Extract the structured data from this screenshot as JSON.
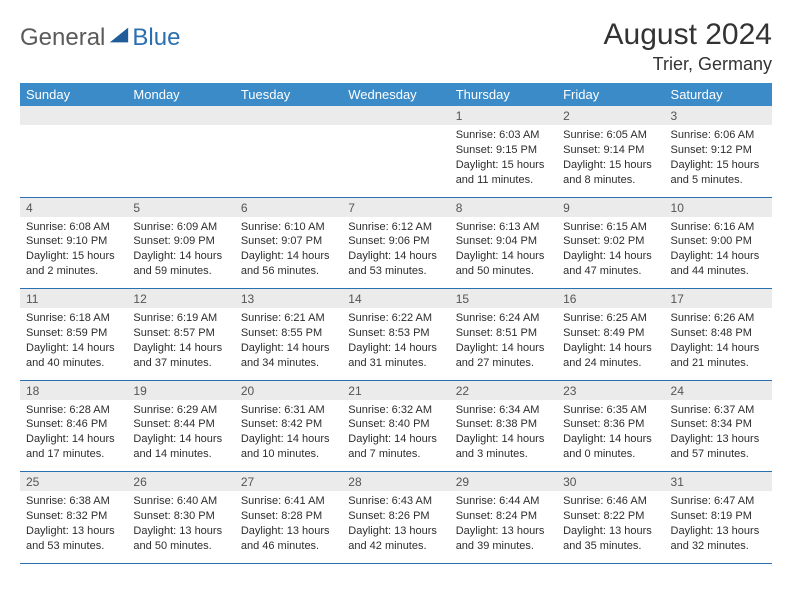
{
  "logo": {
    "part1": "General",
    "part2": "Blue"
  },
  "title": {
    "month": "August 2024",
    "location": "Trier, Germany"
  },
  "colors": {
    "header_bg": "#3b8bc9",
    "header_fg": "#ffffff",
    "daynum_bg": "#ebebeb",
    "daynum_fg": "#555555",
    "rule": "#2a6fb0",
    "text": "#2d2d2d",
    "logo_gray": "#5a5a5a",
    "logo_blue": "#2a6fb0",
    "logo_triangle": "#1f5c99"
  },
  "fontsizes": {
    "title_month": 30,
    "title_loc": 18,
    "th": 13,
    "daynum": 12,
    "cell": 11
  },
  "dayHeaders": [
    "Sunday",
    "Monday",
    "Tuesday",
    "Wednesday",
    "Thursday",
    "Friday",
    "Saturday"
  ],
  "weeks": [
    [
      null,
      null,
      null,
      null,
      {
        "n": "1",
        "sr": "6:03 AM",
        "ss": "9:15 PM",
        "dl": "15 hours and 11 minutes."
      },
      {
        "n": "2",
        "sr": "6:05 AM",
        "ss": "9:14 PM",
        "dl": "15 hours and 8 minutes."
      },
      {
        "n": "3",
        "sr": "6:06 AM",
        "ss": "9:12 PM",
        "dl": "15 hours and 5 minutes."
      }
    ],
    [
      {
        "n": "4",
        "sr": "6:08 AM",
        "ss": "9:10 PM",
        "dl": "15 hours and 2 minutes."
      },
      {
        "n": "5",
        "sr": "6:09 AM",
        "ss": "9:09 PM",
        "dl": "14 hours and 59 minutes."
      },
      {
        "n": "6",
        "sr": "6:10 AM",
        "ss": "9:07 PM",
        "dl": "14 hours and 56 minutes."
      },
      {
        "n": "7",
        "sr": "6:12 AM",
        "ss": "9:06 PM",
        "dl": "14 hours and 53 minutes."
      },
      {
        "n": "8",
        "sr": "6:13 AM",
        "ss": "9:04 PM",
        "dl": "14 hours and 50 minutes."
      },
      {
        "n": "9",
        "sr": "6:15 AM",
        "ss": "9:02 PM",
        "dl": "14 hours and 47 minutes."
      },
      {
        "n": "10",
        "sr": "6:16 AM",
        "ss": "9:00 PM",
        "dl": "14 hours and 44 minutes."
      }
    ],
    [
      {
        "n": "11",
        "sr": "6:18 AM",
        "ss": "8:59 PM",
        "dl": "14 hours and 40 minutes."
      },
      {
        "n": "12",
        "sr": "6:19 AM",
        "ss": "8:57 PM",
        "dl": "14 hours and 37 minutes."
      },
      {
        "n": "13",
        "sr": "6:21 AM",
        "ss": "8:55 PM",
        "dl": "14 hours and 34 minutes."
      },
      {
        "n": "14",
        "sr": "6:22 AM",
        "ss": "8:53 PM",
        "dl": "14 hours and 31 minutes."
      },
      {
        "n": "15",
        "sr": "6:24 AM",
        "ss": "8:51 PM",
        "dl": "14 hours and 27 minutes."
      },
      {
        "n": "16",
        "sr": "6:25 AM",
        "ss": "8:49 PM",
        "dl": "14 hours and 24 minutes."
      },
      {
        "n": "17",
        "sr": "6:26 AM",
        "ss": "8:48 PM",
        "dl": "14 hours and 21 minutes."
      }
    ],
    [
      {
        "n": "18",
        "sr": "6:28 AM",
        "ss": "8:46 PM",
        "dl": "14 hours and 17 minutes."
      },
      {
        "n": "19",
        "sr": "6:29 AM",
        "ss": "8:44 PM",
        "dl": "14 hours and 14 minutes."
      },
      {
        "n": "20",
        "sr": "6:31 AM",
        "ss": "8:42 PM",
        "dl": "14 hours and 10 minutes."
      },
      {
        "n": "21",
        "sr": "6:32 AM",
        "ss": "8:40 PM",
        "dl": "14 hours and 7 minutes."
      },
      {
        "n": "22",
        "sr": "6:34 AM",
        "ss": "8:38 PM",
        "dl": "14 hours and 3 minutes."
      },
      {
        "n": "23",
        "sr": "6:35 AM",
        "ss": "8:36 PM",
        "dl": "14 hours and 0 minutes."
      },
      {
        "n": "24",
        "sr": "6:37 AM",
        "ss": "8:34 PM",
        "dl": "13 hours and 57 minutes."
      }
    ],
    [
      {
        "n": "25",
        "sr": "6:38 AM",
        "ss": "8:32 PM",
        "dl": "13 hours and 53 minutes."
      },
      {
        "n": "26",
        "sr": "6:40 AM",
        "ss": "8:30 PM",
        "dl": "13 hours and 50 minutes."
      },
      {
        "n": "27",
        "sr": "6:41 AM",
        "ss": "8:28 PM",
        "dl": "13 hours and 46 minutes."
      },
      {
        "n": "28",
        "sr": "6:43 AM",
        "ss": "8:26 PM",
        "dl": "13 hours and 42 minutes."
      },
      {
        "n": "29",
        "sr": "6:44 AM",
        "ss": "8:24 PM",
        "dl": "13 hours and 39 minutes."
      },
      {
        "n": "30",
        "sr": "6:46 AM",
        "ss": "8:22 PM",
        "dl": "13 hours and 35 minutes."
      },
      {
        "n": "31",
        "sr": "6:47 AM",
        "ss": "8:19 PM",
        "dl": "13 hours and 32 minutes."
      }
    ]
  ],
  "labels": {
    "sunrise": "Sunrise:",
    "sunset": "Sunset:",
    "daylight": "Daylight:"
  }
}
